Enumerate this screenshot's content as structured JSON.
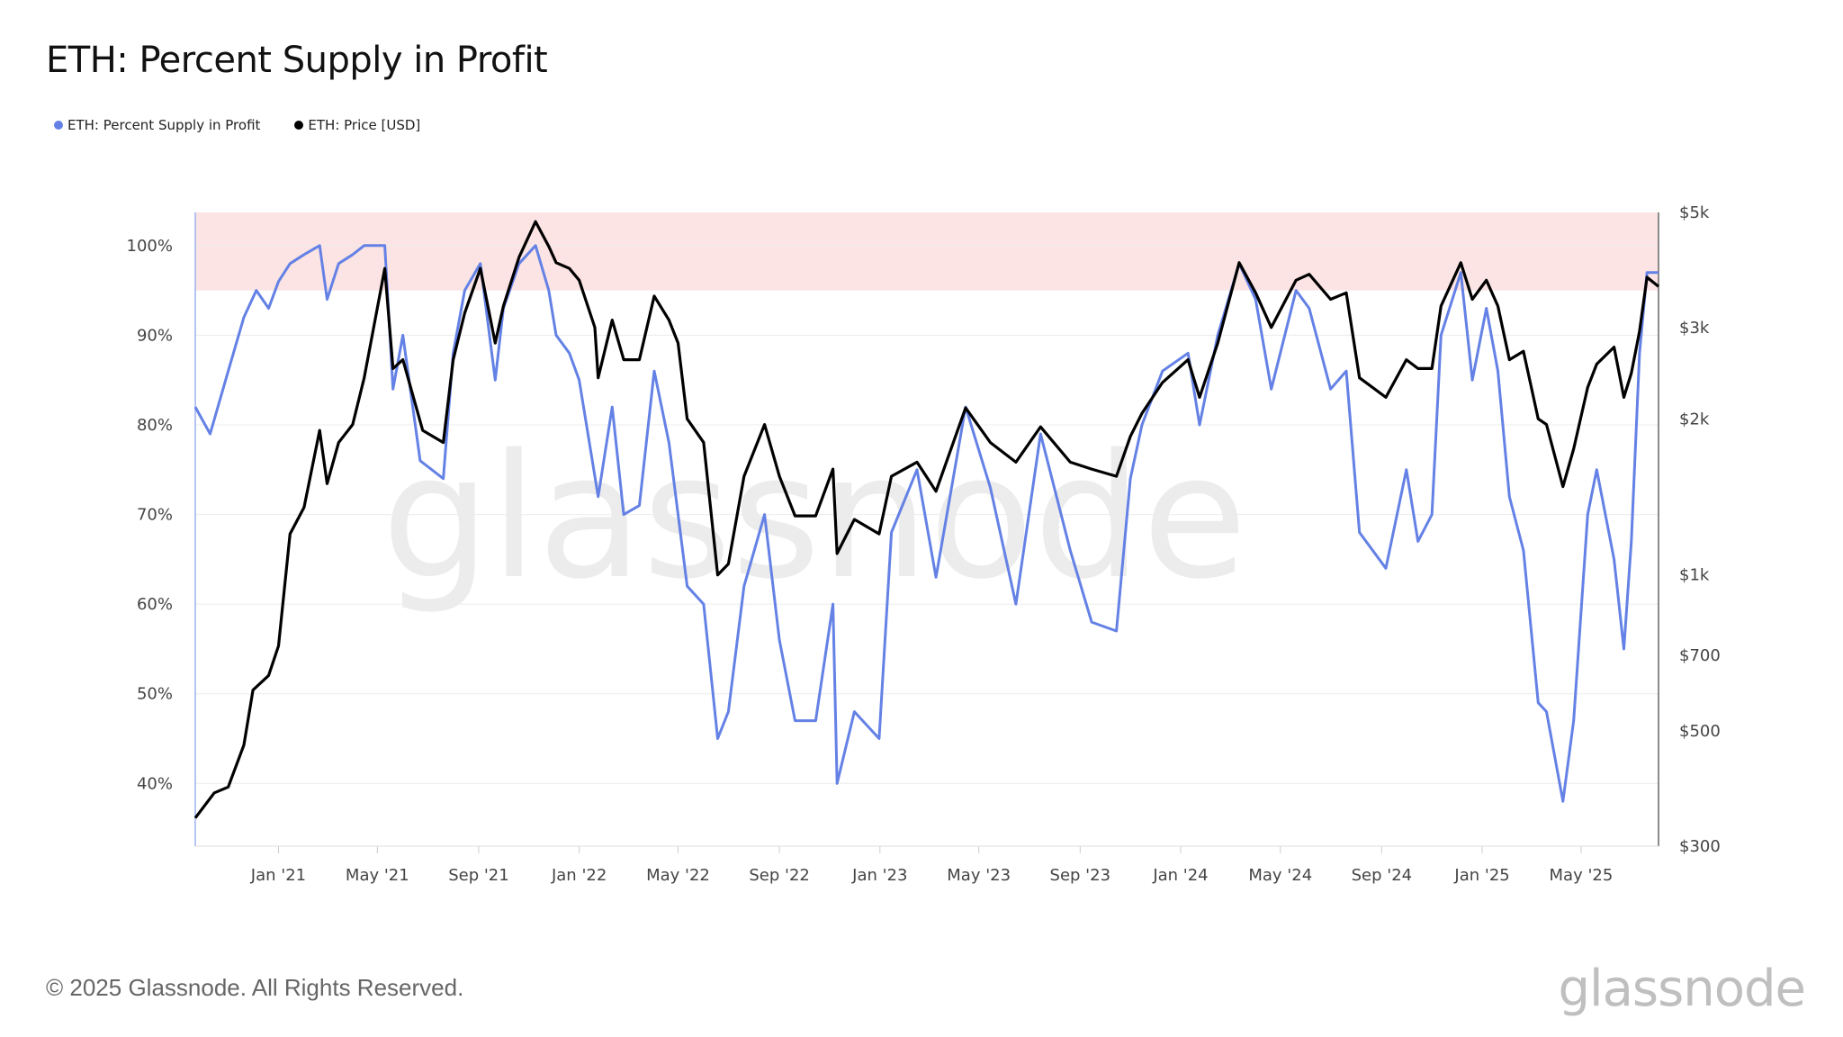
{
  "title": "ETH: Percent Supply in Profit",
  "legend": [
    {
      "label": "ETH: Percent Supply in Profit",
      "color": "#6481e5"
    },
    {
      "label": "ETH: Price [USD]",
      "color": "#000000"
    }
  ],
  "footer": "© 2025 Glassnode. All Rights Reserved.",
  "brand": "glassnode",
  "watermark": "glassnode",
  "chart_data": {
    "type": "line",
    "title": "ETH: Percent Supply in Profit",
    "x_range": [
      "2020-09-22",
      "2025-08-03"
    ],
    "x_ticks": [
      {
        "date": "2021-01-01",
        "label": "Jan '21"
      },
      {
        "date": "2021-05-01",
        "label": "May '21"
      },
      {
        "date": "2021-09-01",
        "label": "Sep '21"
      },
      {
        "date": "2022-01-01",
        "label": "Jan '22"
      },
      {
        "date": "2022-05-01",
        "label": "May '22"
      },
      {
        "date": "2022-09-01",
        "label": "Sep '22"
      },
      {
        "date": "2023-01-01",
        "label": "Jan '23"
      },
      {
        "date": "2023-05-01",
        "label": "May '23"
      },
      {
        "date": "2023-09-01",
        "label": "Sep '23"
      },
      {
        "date": "2024-01-01",
        "label": "Jan '24"
      },
      {
        "date": "2024-05-01",
        "label": "May '24"
      },
      {
        "date": "2024-09-01",
        "label": "Sep '24"
      },
      {
        "date": "2025-01-01",
        "label": "Jan '25"
      },
      {
        "date": "2025-05-01",
        "label": "May '25"
      }
    ],
    "y_left": {
      "range": [
        33,
        103.7
      ],
      "ticks": [
        40,
        50,
        60,
        70,
        80,
        90,
        100
      ],
      "tick_labels": [
        "40%",
        "50%",
        "60%",
        "70%",
        "80%",
        "90%",
        "100%"
      ],
      "grid": true
    },
    "y_right": {
      "scale": "log",
      "range": [
        300,
        5000
      ],
      "ticks": [
        300,
        500,
        700,
        1000,
        2000,
        3000,
        5000
      ],
      "tick_labels": [
        "$300",
        "$500",
        "$700",
        "$1k",
        "$2k",
        "$3k",
        "$5k"
      ]
    },
    "highlight_band": {
      "axis": "left",
      "from": 95,
      "to": 103.7,
      "color": "#fce4e4"
    },
    "series": [
      {
        "name": "ETH: Percent Supply in Profit",
        "axis": "left",
        "color": "#6481e5",
        "x": [
          "2020-09-22",
          "2020-10-10",
          "2020-11-01",
          "2020-11-20",
          "2020-12-05",
          "2020-12-20",
          "2021-01-01",
          "2021-01-15",
          "2021-02-01",
          "2021-02-20",
          "2021-03-01",
          "2021-03-15",
          "2021-04-01",
          "2021-04-15",
          "2021-05-10",
          "2021-05-20",
          "2021-06-01",
          "2021-06-22",
          "2021-07-20",
          "2021-08-01",
          "2021-08-15",
          "2021-09-03",
          "2021-09-21",
          "2021-10-01",
          "2021-10-20",
          "2021-11-09",
          "2021-11-25",
          "2021-12-04",
          "2021-12-20",
          "2022-01-01",
          "2022-01-24",
          "2022-02-10",
          "2022-02-24",
          "2022-03-15",
          "2022-04-02",
          "2022-04-20",
          "2022-05-12",
          "2022-06-01",
          "2022-06-18",
          "2022-07-01",
          "2022-07-20",
          "2022-08-14",
          "2022-09-01",
          "2022-09-20",
          "2022-10-15",
          "2022-11-05",
          "2022-11-10",
          "2022-12-01",
          "2022-12-31",
          "2023-01-15",
          "2023-02-15",
          "2023-03-10",
          "2023-04-15",
          "2023-05-15",
          "2023-06-15",
          "2023-07-15",
          "2023-08-20",
          "2023-09-15",
          "2023-10-15",
          "2023-11-01",
          "2023-11-15",
          "2023-12-10",
          "2024-01-10",
          "2024-01-24",
          "2024-02-15",
          "2024-03-12",
          "2024-04-01",
          "2024-04-20",
          "2024-05-20",
          "2024-06-05",
          "2024-07-01",
          "2024-07-20",
          "2024-08-05",
          "2024-09-06",
          "2024-10-01",
          "2024-10-15",
          "2024-11-01",
          "2024-11-12",
          "2024-12-06",
          "2024-12-20",
          "2025-01-06",
          "2025-01-20",
          "2025-02-03",
          "2025-02-20",
          "2025-03-10",
          "2025-03-20",
          "2025-04-09",
          "2025-04-22",
          "2025-05-09",
          "2025-05-20",
          "2025-06-10",
          "2025-06-22",
          "2025-07-01",
          "2025-07-11",
          "2025-07-20",
          "2025-08-03"
        ],
        "y": [
          82,
          79,
          86,
          92,
          95,
          93,
          96,
          98,
          99,
          100,
          94,
          98,
          99,
          100,
          100,
          84,
          90,
          76,
          74,
          88,
          95,
          98,
          85,
          93,
          98,
          100,
          95,
          90,
          88,
          85,
          72,
          82,
          70,
          71,
          86,
          78,
          62,
          60,
          45,
          48,
          62,
          70,
          56,
          47,
          47,
          60,
          40,
          48,
          45,
          68,
          75,
          63,
          82,
          73,
          60,
          79,
          66,
          58,
          57,
          74,
          80,
          86,
          88,
          80,
          90,
          98,
          94,
          84,
          95,
          93,
          84,
          86,
          68,
          64,
          75,
          67,
          70,
          90,
          97,
          85,
          93,
          86,
          72,
          66,
          49,
          48,
          38,
          47,
          70,
          75,
          65,
          55,
          67,
          88,
          97,
          97
        ]
      },
      {
        "name": "ETH: Price [USD]",
        "axis": "right",
        "color": "#000000",
        "x": [
          "2020-09-22",
          "2020-10-15",
          "2020-11-01",
          "2020-11-20",
          "2020-12-01",
          "2020-12-20",
          "2021-01-01",
          "2021-01-15",
          "2021-02-01",
          "2021-02-20",
          "2021-03-01",
          "2021-03-15",
          "2021-04-01",
          "2021-04-15",
          "2021-05-10",
          "2021-05-20",
          "2021-06-01",
          "2021-06-25",
          "2021-07-20",
          "2021-08-01",
          "2021-08-15",
          "2021-09-03",
          "2021-09-21",
          "2021-10-01",
          "2021-10-20",
          "2021-11-09",
          "2021-11-25",
          "2021-12-04",
          "2021-12-20",
          "2022-01-01",
          "2022-01-20",
          "2022-01-24",
          "2022-02-10",
          "2022-02-24",
          "2022-03-15",
          "2022-04-02",
          "2022-04-20",
          "2022-05-01",
          "2022-05-12",
          "2022-06-01",
          "2022-06-18",
          "2022-07-01",
          "2022-07-20",
          "2022-08-14",
          "2022-09-01",
          "2022-09-20",
          "2022-10-15",
          "2022-11-05",
          "2022-11-10",
          "2022-12-01",
          "2022-12-31",
          "2023-01-15",
          "2023-02-15",
          "2023-03-10",
          "2023-04-15",
          "2023-05-15",
          "2023-06-15",
          "2023-07-15",
          "2023-08-20",
          "2023-09-15",
          "2023-10-15",
          "2023-11-01",
          "2023-11-15",
          "2023-12-10",
          "2024-01-10",
          "2024-01-24",
          "2024-02-15",
          "2024-03-12",
          "2024-04-01",
          "2024-04-20",
          "2024-05-20",
          "2024-06-05",
          "2024-07-01",
          "2024-07-20",
          "2024-08-05",
          "2024-09-06",
          "2024-10-01",
          "2024-10-15",
          "2024-11-01",
          "2024-11-12",
          "2024-12-06",
          "2024-12-20",
          "2025-01-06",
          "2025-01-20",
          "2025-02-03",
          "2025-02-20",
          "2025-03-10",
          "2025-03-20",
          "2025-04-09",
          "2025-04-22",
          "2025-05-09",
          "2025-05-20",
          "2025-06-10",
          "2025-06-22",
          "2025-07-01",
          "2025-07-11",
          "2025-07-20",
          "2025-08-03"
        ],
        "y": [
          340,
          380,
          390,
          470,
          600,
          640,
          730,
          1200,
          1350,
          1900,
          1500,
          1800,
          1950,
          2400,
          3900,
          2500,
          2600,
          1900,
          1800,
          2600,
          3200,
          3900,
          2800,
          3300,
          4100,
          4800,
          4300,
          4000,
          3900,
          3700,
          3000,
          2400,
          3100,
          2600,
          2600,
          3450,
          3100,
          2800,
          2000,
          1800,
          1000,
          1050,
          1550,
          1950,
          1550,
          1300,
          1300,
          1600,
          1100,
          1280,
          1200,
          1550,
          1650,
          1450,
          2100,
          1800,
          1650,
          1930,
          1650,
          1600,
          1550,
          1850,
          2050,
          2350,
          2600,
          2200,
          2800,
          4000,
          3500,
          3000,
          3700,
          3800,
          3400,
          3500,
          2400,
          2200,
          2600,
          2500,
          2500,
          3300,
          4000,
          3400,
          3700,
          3300,
          2600,
          2700,
          2000,
          1950,
          1480,
          1750,
          2300,
          2550,
          2750,
          2200,
          2450,
          2950,
          3750,
          3600
        ]
      }
    ]
  }
}
